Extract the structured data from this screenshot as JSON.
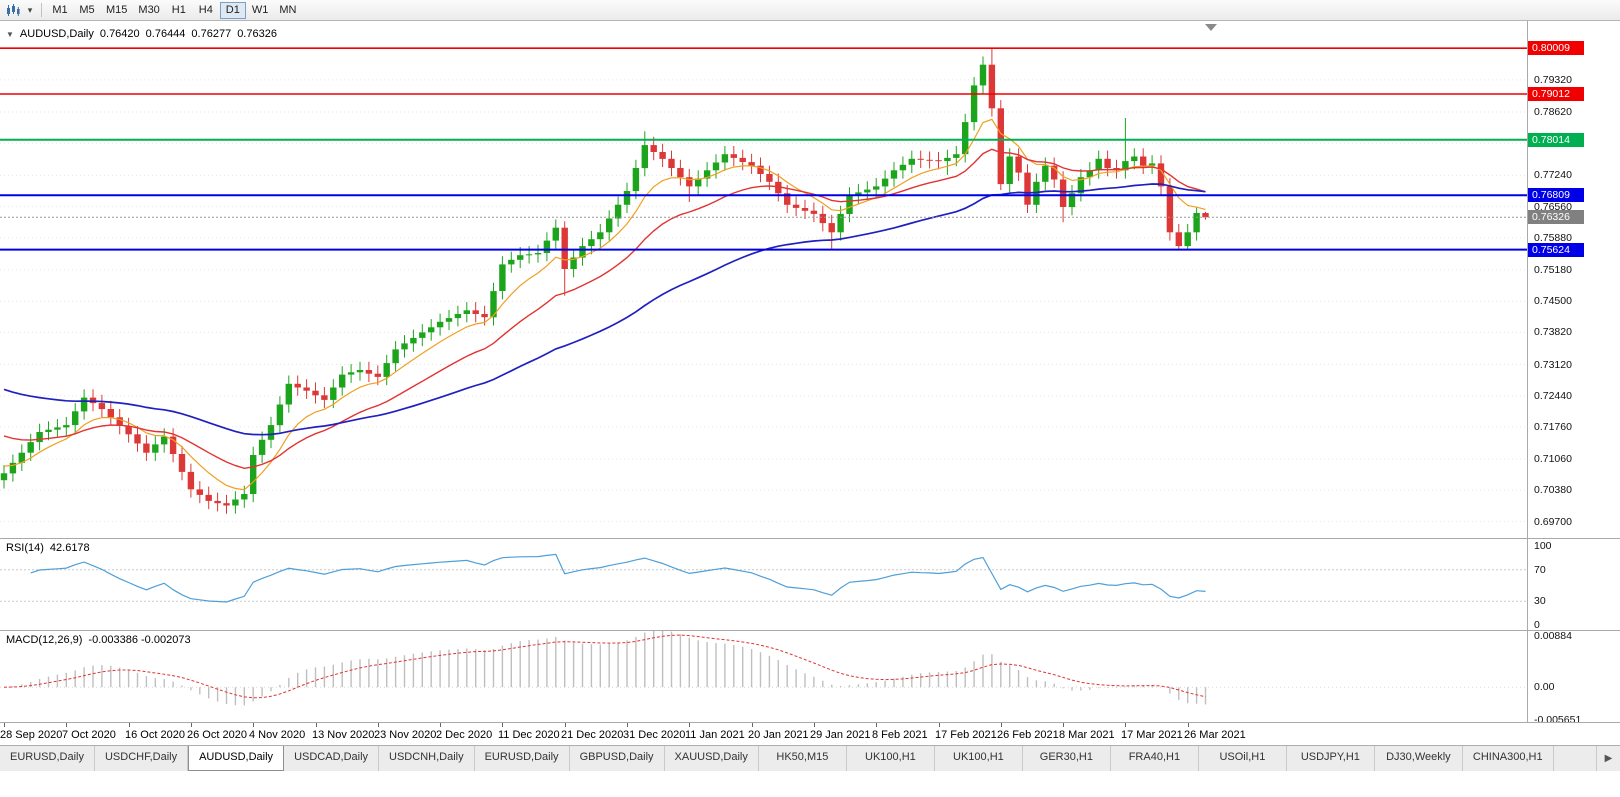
{
  "icons": {
    "collapse": "▼",
    "dropdown": "▾",
    "tab_scroll_right": "▶"
  },
  "toolbar": {
    "timeframes": [
      {
        "label": "M1",
        "active": false
      },
      {
        "label": "M5",
        "active": false
      },
      {
        "label": "M15",
        "active": false
      },
      {
        "label": "M30",
        "active": false
      },
      {
        "label": "H1",
        "active": false
      },
      {
        "label": "H4",
        "active": false
      },
      {
        "label": "D1",
        "active": true
      },
      {
        "label": "W1",
        "active": false
      },
      {
        "label": "MN",
        "active": false
      }
    ]
  },
  "chart": {
    "symbol_period": "AUDUSD,Daily",
    "quote": {
      "open": "0.76420",
      "high": "0.76444",
      "low": "0.76277",
      "close": "0.76326"
    }
  },
  "price_scale": {
    "ticks": [
      {
        "label": "0.79320",
        "value": 0.7932
      },
      {
        "label": "0.78620",
        "value": 0.7862
      },
      {
        "label": "0.77940",
        "value": 0.7794
      },
      {
        "label": "0.77240",
        "value": 0.7724
      },
      {
        "label": "0.76560",
        "value": 0.7656
      },
      {
        "label": "0.75880",
        "value": 0.7588
      },
      {
        "label": "0.75180",
        "value": 0.7518
      },
      {
        "label": "0.74500",
        "value": 0.745
      },
      {
        "label": "0.73820",
        "value": 0.7382
      },
      {
        "label": "0.73120",
        "value": 0.7312
      },
      {
        "label": "0.72440",
        "value": 0.7244
      },
      {
        "label": "0.71760",
        "value": 0.7176
      },
      {
        "label": "0.71060",
        "value": 0.7106
      },
      {
        "label": "0.70380",
        "value": 0.7038
      },
      {
        "label": "0.69700",
        "value": 0.697
      }
    ]
  },
  "hlines": [
    {
      "label": "0.80009",
      "value": 0.80009,
      "color": "#f00000",
      "width": 1.6
    },
    {
      "label": "0.79012",
      "value": 0.79012,
      "color": "#f00000",
      "width": 1.6
    },
    {
      "label": "0.78014",
      "value": 0.78014,
      "color": "#00b050",
      "width": 2
    },
    {
      "label": "0.76809",
      "value": 0.76809,
      "color": "#0000e8",
      "width": 2
    },
    {
      "label": "0.75624",
      "value": 0.75624,
      "color": "#0000e8",
      "width": 2
    }
  ],
  "current_price": {
    "label": "0.76326",
    "value": 0.76326,
    "badge_color": "#808080"
  },
  "indicators": {
    "rsi": {
      "name": "RSI(14)",
      "value": "42.6178",
      "color": "#4f9fd8",
      "levels": [
        70,
        30
      ],
      "scale": [
        {
          "label": "100",
          "value": 100
        },
        {
          "label": "70",
          "value": 70
        },
        {
          "label": "30",
          "value": 30
        },
        {
          "label": "0",
          "value": 0
        }
      ]
    },
    "macd": {
      "name": "MACD(12,26,9)",
      "values": "-0.003386 -0.002073",
      "histogram_color": "#bfbfbf",
      "signal_color": "#e03434",
      "scale": [
        {
          "label": "0.00884",
          "value": 0.00884
        },
        {
          "label": "0.00",
          "value": 0
        },
        {
          "label": "-0.005651",
          "value": -0.005651
        }
      ]
    }
  },
  "time_axis": {
    "labels": [
      {
        "text": "28 Sep 2020",
        "index": 0
      },
      {
        "text": "7 Oct 2020",
        "index": 7
      },
      {
        "text": "16 Oct 2020",
        "index": 14
      },
      {
        "text": "26 Oct 2020",
        "index": 21
      },
      {
        "text": "4 Nov 2020",
        "index": 28
      },
      {
        "text": "13 Nov 2020",
        "index": 35
      },
      {
        "text": "23 Nov 2020",
        "index": 42
      },
      {
        "text": "2 Dec 2020",
        "index": 49
      },
      {
        "text": "11 Dec 2020",
        "index": 56
      },
      {
        "text": "21 Dec 2020",
        "index": 63
      },
      {
        "text": "31 Dec 2020",
        "index": 70
      },
      {
        "text": "11 Jan 2021",
        "index": 77
      },
      {
        "text": "20 Jan 2021",
        "index": 84
      },
      {
        "text": "29 Jan 2021",
        "index": 91
      },
      {
        "text": "8 Feb 2021",
        "index": 98
      },
      {
        "text": "17 Feb 2021",
        "index": 105
      },
      {
        "text": "26 Feb 2021",
        "index": 112
      },
      {
        "text": "8 Mar 2021",
        "index": 119
      },
      {
        "text": "17 Mar 2021",
        "index": 126
      },
      {
        "text": "26 Mar 2021",
        "index": 133
      }
    ]
  },
  "tab_bar": {
    "items": [
      {
        "label": "EURUSD,Daily",
        "active": false
      },
      {
        "label": "USDCHF,Daily",
        "active": false
      },
      {
        "label": "AUDUSD,Daily",
        "active": true
      },
      {
        "label": "USDCAD,Daily",
        "active": false
      },
      {
        "label": "USDCNH,Daily",
        "active": false
      },
      {
        "label": "EURUSD,Daily",
        "active": false
      },
      {
        "label": "GBPUSD,Daily",
        "active": false
      },
      {
        "label": "XAUUSD,Daily",
        "active": false
      },
      {
        "label": "HK50,M15",
        "active": false
      },
      {
        "label": "UK100,H1",
        "active": false
      },
      {
        "label": "UK100,H1",
        "active": false
      },
      {
        "label": "GER30,H1",
        "active": false
      },
      {
        "label": "FRA40,H1",
        "active": false
      },
      {
        "label": "USOil,H1",
        "active": false
      },
      {
        "label": "USDJPY,H1",
        "active": false
      },
      {
        "label": "DJ30,Weekly",
        "active": false
      },
      {
        "label": "CHINA300,H1",
        "active": false
      }
    ]
  },
  "chart_data": {
    "type": "candlestick",
    "symbol": "AUDUSD",
    "period": "Daily",
    "title": "AUDUSD,Daily 0.76420 0.76444 0.76277 0.76326",
    "price_range": {
      "top": 0.8045,
      "bottom": 0.6945
    },
    "colors": {
      "bull": "#1ca51c",
      "bear": "#dc3838"
    },
    "rsi_period": 14,
    "macd_params": {
      "fast": 12,
      "slow": 26,
      "signal": 9
    },
    "moving_averages": [
      {
        "name": "fast-orange",
        "period": 8,
        "seed": 0.7095,
        "color": "#f0a020",
        "width": 1.2
      },
      {
        "name": "mid-red",
        "period": 20,
        "seed": 0.7165,
        "color": "#e23333",
        "width": 1.4
      },
      {
        "name": "slow-blue",
        "period": 52,
        "seed": 0.7265,
        "color": "#2020c0",
        "width": 1.7
      }
    ],
    "candles": [
      [
        0.706,
        0.7093,
        0.7042,
        0.7075
      ],
      [
        0.7075,
        0.7116,
        0.7057,
        0.7098
      ],
      [
        0.7098,
        0.7138,
        0.708,
        0.712
      ],
      [
        0.712,
        0.7161,
        0.7102,
        0.7143
      ],
      [
        0.7143,
        0.7183,
        0.7125,
        0.7165
      ],
      [
        0.7165,
        0.7188,
        0.7147,
        0.717
      ],
      [
        0.717,
        0.7193,
        0.7152,
        0.7175
      ],
      [
        0.7175,
        0.7198,
        0.7157,
        0.718
      ],
      [
        0.718,
        0.7228,
        0.7162,
        0.721
      ],
      [
        0.721,
        0.7258,
        0.7192,
        0.724
      ],
      [
        0.724,
        0.7258,
        0.721,
        0.7228
      ],
      [
        0.7228,
        0.7246,
        0.7197,
        0.7215
      ],
      [
        0.7215,
        0.7233,
        0.7179,
        0.7197
      ],
      [
        0.7197,
        0.7215,
        0.716,
        0.7178
      ],
      [
        0.7178,
        0.7196,
        0.7142,
        0.716
      ],
      [
        0.716,
        0.7178,
        0.7122,
        0.714
      ],
      [
        0.714,
        0.7158,
        0.7102,
        0.712
      ],
      [
        0.712,
        0.7156,
        0.7102,
        0.7138
      ],
      [
        0.7138,
        0.7173,
        0.712,
        0.7155
      ],
      [
        0.7155,
        0.7173,
        0.7099,
        0.7117
      ],
      [
        0.7117,
        0.7135,
        0.706,
        0.7078
      ],
      [
        0.7078,
        0.7096,
        0.7022,
        0.704
      ],
      [
        0.704,
        0.7058,
        0.701,
        0.7028
      ],
      [
        0.7028,
        0.7046,
        0.6997,
        0.7015
      ],
      [
        0.7015,
        0.7033,
        0.6992,
        0.701
      ],
      [
        0.701,
        0.7028,
        0.6987,
        0.7005
      ],
      [
        0.7005,
        0.7036,
        0.6987,
        0.7018
      ],
      [
        0.7018,
        0.7048,
        0.7,
        0.703
      ],
      [
        0.703,
        0.7133,
        0.7012,
        0.7115
      ],
      [
        0.7115,
        0.7166,
        0.7097,
        0.7148
      ],
      [
        0.7148,
        0.7198,
        0.713,
        0.718
      ],
      [
        0.718,
        0.7243,
        0.7162,
        0.7225
      ],
      [
        0.7225,
        0.7288,
        0.7207,
        0.727
      ],
      [
        0.727,
        0.7288,
        0.7244,
        0.7262
      ],
      [
        0.7262,
        0.728,
        0.7237,
        0.7255
      ],
      [
        0.7255,
        0.7273,
        0.7227,
        0.7245
      ],
      [
        0.7245,
        0.7263,
        0.7217,
        0.7235
      ],
      [
        0.7235,
        0.728,
        0.7217,
        0.7262
      ],
      [
        0.7262,
        0.7308,
        0.7244,
        0.729
      ],
      [
        0.729,
        0.7313,
        0.7272,
        0.7295
      ],
      [
        0.7295,
        0.7318,
        0.7277,
        0.73
      ],
      [
        0.73,
        0.7318,
        0.7274,
        0.7292
      ],
      [
        0.7292,
        0.731,
        0.7267,
        0.7285
      ],
      [
        0.7285,
        0.7333,
        0.7267,
        0.7315
      ],
      [
        0.7315,
        0.7363,
        0.7297,
        0.7345
      ],
      [
        0.7345,
        0.7376,
        0.7327,
        0.7358
      ],
      [
        0.7358,
        0.7388,
        0.734,
        0.737
      ],
      [
        0.737,
        0.74,
        0.7352,
        0.7382
      ],
      [
        0.7382,
        0.7411,
        0.7364,
        0.7393
      ],
      [
        0.7393,
        0.7423,
        0.7375,
        0.7405
      ],
      [
        0.7405,
        0.7431,
        0.7387,
        0.7413
      ],
      [
        0.7413,
        0.744,
        0.7395,
        0.7422
      ],
      [
        0.7422,
        0.7448,
        0.7404,
        0.743
      ],
      [
        0.743,
        0.7448,
        0.7404,
        0.7422
      ],
      [
        0.7422,
        0.744,
        0.7397,
        0.7415
      ],
      [
        0.7415,
        0.749,
        0.7397,
        0.7472
      ],
      [
        0.7472,
        0.7548,
        0.7454,
        0.753
      ],
      [
        0.753,
        0.7558,
        0.7512,
        0.754
      ],
      [
        0.754,
        0.7568,
        0.7522,
        0.755
      ],
      [
        0.755,
        0.757,
        0.7532,
        0.7552
      ],
      [
        0.7552,
        0.7573,
        0.7534,
        0.7555
      ],
      [
        0.7555,
        0.76,
        0.7537,
        0.7582
      ],
      [
        0.7582,
        0.7628,
        0.7564,
        0.761
      ],
      [
        0.761,
        0.7624,
        0.7462,
        0.752
      ],
      [
        0.752,
        0.7563,
        0.7502,
        0.7545
      ],
      [
        0.7545,
        0.7588,
        0.7527,
        0.757
      ],
      [
        0.757,
        0.7603,
        0.7552,
        0.7585
      ],
      [
        0.7585,
        0.7618,
        0.7567,
        0.76
      ],
      [
        0.76,
        0.7648,
        0.7582,
        0.763
      ],
      [
        0.763,
        0.7678,
        0.7612,
        0.766
      ],
      [
        0.766,
        0.7708,
        0.7642,
        0.769
      ],
      [
        0.769,
        0.7758,
        0.7672,
        0.774
      ],
      [
        0.774,
        0.782,
        0.7722,
        0.779
      ],
      [
        0.779,
        0.7808,
        0.7757,
        0.7775
      ],
      [
        0.7775,
        0.7793,
        0.7742,
        0.776
      ],
      [
        0.776,
        0.7778,
        0.7722,
        0.774
      ],
      [
        0.774,
        0.7758,
        0.7702,
        0.772
      ],
      [
        0.772,
        0.7738,
        0.7666,
        0.77
      ],
      [
        0.77,
        0.7735,
        0.7682,
        0.7717
      ],
      [
        0.7717,
        0.7753,
        0.7699,
        0.7735
      ],
      [
        0.7735,
        0.777,
        0.7717,
        0.7752
      ],
      [
        0.7752,
        0.7788,
        0.7734,
        0.777
      ],
      [
        0.777,
        0.7788,
        0.7744,
        0.7762
      ],
      [
        0.7762,
        0.778,
        0.7735,
        0.7753
      ],
      [
        0.7753,
        0.7771,
        0.7727,
        0.7745
      ],
      [
        0.7745,
        0.7763,
        0.7709,
        0.7727
      ],
      [
        0.7727,
        0.7745,
        0.7692,
        0.771
      ],
      [
        0.771,
        0.7728,
        0.7667,
        0.7685
      ],
      [
        0.7685,
        0.7703,
        0.7642,
        0.766
      ],
      [
        0.766,
        0.7678,
        0.7635,
        0.7653
      ],
      [
        0.7653,
        0.7671,
        0.7629,
        0.7647
      ],
      [
        0.7647,
        0.7665,
        0.7622,
        0.764
      ],
      [
        0.764,
        0.7658,
        0.7602,
        0.762
      ],
      [
        0.762,
        0.7638,
        0.7564,
        0.76
      ],
      [
        0.76,
        0.7658,
        0.7582,
        0.764
      ],
      [
        0.764,
        0.7698,
        0.7622,
        0.768
      ],
      [
        0.768,
        0.7705,
        0.7662,
        0.7687
      ],
      [
        0.7687,
        0.7711,
        0.7669,
        0.7693
      ],
      [
        0.7693,
        0.7718,
        0.7675,
        0.77
      ],
      [
        0.77,
        0.7735,
        0.7682,
        0.7717
      ],
      [
        0.7717,
        0.7753,
        0.7699,
        0.7735
      ],
      [
        0.7735,
        0.7765,
        0.7717,
        0.7747
      ],
      [
        0.7747,
        0.7778,
        0.7729,
        0.776
      ],
      [
        0.776,
        0.7778,
        0.774,
        0.7758
      ],
      [
        0.7758,
        0.7776,
        0.7739,
        0.7757
      ],
      [
        0.7757,
        0.7775,
        0.7737,
        0.7755
      ],
      [
        0.7755,
        0.778,
        0.7725,
        0.7762
      ],
      [
        0.7762,
        0.7788,
        0.7744,
        0.777
      ],
      [
        0.777,
        0.7858,
        0.7752,
        0.784
      ],
      [
        0.784,
        0.7938,
        0.7822,
        0.792
      ],
      [
        0.792,
        0.7983,
        0.7902,
        0.7965
      ],
      [
        0.7965,
        0.8001,
        0.7852,
        0.787
      ],
      [
        0.787,
        0.7888,
        0.7692,
        0.7705
      ],
      [
        0.7705,
        0.7783,
        0.7687,
        0.7765
      ],
      [
        0.7765,
        0.7783,
        0.7712,
        0.773
      ],
      [
        0.773,
        0.7748,
        0.7642,
        0.766
      ],
      [
        0.766,
        0.7728,
        0.7642,
        0.771
      ],
      [
        0.771,
        0.7763,
        0.7692,
        0.7745
      ],
      [
        0.7745,
        0.7763,
        0.7697,
        0.7715
      ],
      [
        0.7715,
        0.7733,
        0.7622,
        0.7655
      ],
      [
        0.7655,
        0.7703,
        0.7637,
        0.7685
      ],
      [
        0.7685,
        0.7738,
        0.7667,
        0.772
      ],
      [
        0.772,
        0.7753,
        0.7702,
        0.7735
      ],
      [
        0.7735,
        0.7778,
        0.7717,
        0.776
      ],
      [
        0.776,
        0.7778,
        0.7722,
        0.774
      ],
      [
        0.774,
        0.7758,
        0.7717,
        0.7735
      ],
      [
        0.7735,
        0.7849,
        0.7717,
        0.7755
      ],
      [
        0.7755,
        0.7783,
        0.7737,
        0.7765
      ],
      [
        0.7765,
        0.7783,
        0.7727,
        0.7745
      ],
      [
        0.7745,
        0.7768,
        0.7727,
        0.775
      ],
      [
        0.775,
        0.7768,
        0.7682,
        0.77
      ],
      [
        0.77,
        0.7718,
        0.7582,
        0.76
      ],
      [
        0.76,
        0.7618,
        0.7562,
        0.757
      ],
      [
        0.757,
        0.7618,
        0.7563,
        0.76
      ],
      [
        0.76,
        0.7655,
        0.7582,
        0.7642
      ],
      [
        0.7642,
        0.76444,
        0.76277,
        0.76326
      ]
    ]
  }
}
